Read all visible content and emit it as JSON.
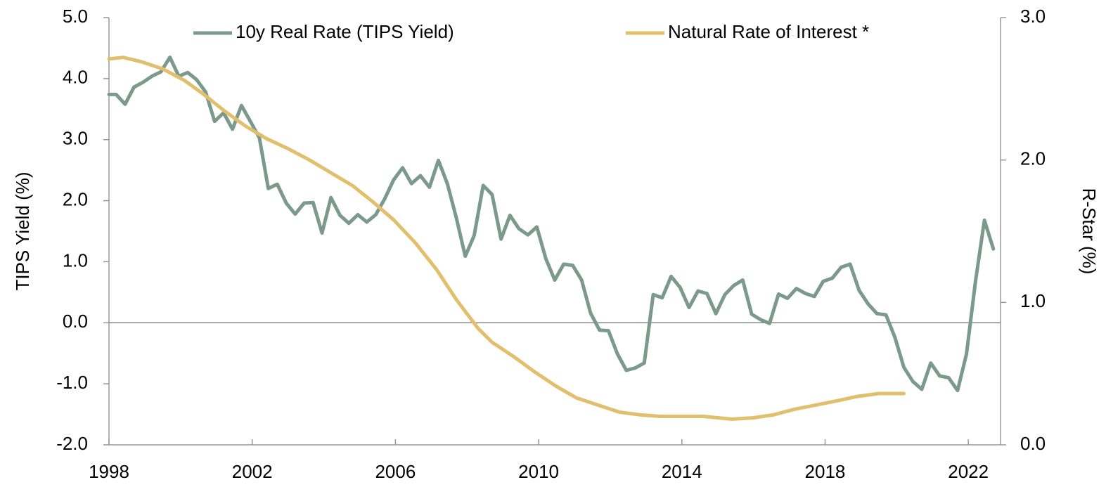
{
  "chart_data": {
    "type": "line",
    "ylabel": "TIPS Yield (%)",
    "y2label": "R-Star (%)",
    "xlim": [
      1998,
      2022.9
    ],
    "xticks": [
      1998,
      2002,
      2006,
      2010,
      2014,
      2018,
      2022
    ],
    "ylim": [
      -2,
      5
    ],
    "yticks": [
      {
        "value": -2,
        "label": "-2.0"
      },
      {
        "value": -1,
        "label": "-1.0"
      },
      {
        "value": 0,
        "label": "0.0"
      },
      {
        "value": 1,
        "label": "1.0"
      },
      {
        "value": 2,
        "label": "2.0"
      },
      {
        "value": 3,
        "label": "3.0"
      },
      {
        "value": 4,
        "label": "4.0"
      },
      {
        "value": 5,
        "label": "5.0"
      }
    ],
    "y2lim": [
      0,
      3
    ],
    "y2ticks": [
      {
        "value": 0,
        "label": "0.0"
      },
      {
        "value": 1,
        "label": "1.0"
      },
      {
        "value": 2,
        "label": "2.0"
      },
      {
        "value": 3,
        "label": "3.0"
      }
    ],
    "legend": "top",
    "series": [
      {
        "name": "10y Real Rate (TIPS Yield)",
        "color": "#7b9a8b",
        "x": [
          1998.0,
          1998.2,
          1998.45,
          1998.7,
          1998.95,
          1999.2,
          1999.45,
          1999.7,
          1999.95,
          2000.2,
          2000.45,
          2000.7,
          2000.95,
          2001.2,
          2001.45,
          2001.7,
          2001.95,
          2002.2,
          2002.45,
          2002.7,
          2002.95,
          2003.2,
          2003.45,
          2003.7,
          2003.95,
          2004.2,
          2004.45,
          2004.7,
          2004.95,
          2005.2,
          2005.45,
          2005.7,
          2005.95,
          2006.2,
          2006.45,
          2006.7,
          2006.95,
          2007.2,
          2007.45,
          2007.7,
          2007.95,
          2008.2,
          2008.45,
          2008.7,
          2008.95,
          2009.2,
          2009.45,
          2009.7,
          2009.95,
          2010.2,
          2010.45,
          2010.7,
          2010.95,
          2011.2,
          2011.45,
          2011.7,
          2011.95,
          2012.2,
          2012.45,
          2012.7,
          2012.95,
          2013.2,
          2013.45,
          2013.7,
          2013.95,
          2014.2,
          2014.45,
          2014.7,
          2014.95,
          2015.2,
          2015.45,
          2015.7,
          2015.95,
          2016.2,
          2016.45,
          2016.7,
          2016.95,
          2017.2,
          2017.45,
          2017.7,
          2017.95,
          2018.2,
          2018.45,
          2018.7,
          2018.95,
          2019.2,
          2019.45,
          2019.7,
          2019.95,
          2020.2,
          2020.45,
          2020.7,
          2020.95,
          2021.2,
          2021.45,
          2021.7,
          2021.95,
          2022.2,
          2022.45,
          2022.7
        ],
        "values": [
          3.74,
          3.74,
          3.58,
          3.86,
          3.94,
          4.04,
          4.11,
          4.35,
          4.04,
          4.1,
          3.98,
          3.78,
          3.3,
          3.44,
          3.17,
          3.56,
          3.3,
          3.03,
          2.2,
          2.27,
          1.96,
          1.78,
          1.96,
          1.97,
          1.47,
          2.05,
          1.76,
          1.63,
          1.77,
          1.65,
          1.77,
          2.03,
          2.34,
          2.54,
          2.28,
          2.41,
          2.22,
          2.66,
          2.28,
          1.72,
          1.09,
          1.43,
          2.25,
          2.1,
          1.37,
          1.76,
          1.54,
          1.44,
          1.57,
          1.05,
          0.7,
          0.96,
          0.94,
          0.7,
          0.16,
          -0.12,
          -0.13,
          -0.51,
          -0.78,
          -0.74,
          -0.66,
          0.46,
          0.41,
          0.76,
          0.58,
          0.25,
          0.52,
          0.48,
          0.15,
          0.46,
          0.61,
          0.7,
          0.14,
          0.05,
          -0.01,
          0.47,
          0.4,
          0.56,
          0.48,
          0.43,
          0.68,
          0.73,
          0.91,
          0.96,
          0.53,
          0.31,
          0.15,
          0.13,
          -0.24,
          -0.73,
          -0.96,
          -1.09,
          -0.66,
          -0.87,
          -0.9,
          -1.11,
          -0.51,
          0.68,
          1.68,
          1.21
        ]
      },
      {
        "name": "Natural Rate of Interest *",
        "color": "#e1bf6d",
        "axis": "y2",
        "x": [
          1998.0,
          1998.4,
          1998.9,
          1999.5,
          2000.1,
          2000.65,
          2001.25,
          2001.8,
          2002.4,
          2003.0,
          2003.6,
          2004.2,
          2004.8,
          2005.35,
          2005.95,
          2006.55,
          2007.15,
          2007.7,
          2008.3,
          2008.7,
          2009.3,
          2009.9,
          2010.5,
          2011.05,
          2011.65,
          2012.25,
          2012.85,
          2013.4,
          2014.0,
          2014.6,
          2015.4,
          2016.0,
          2016.55,
          2017.15,
          2017.75,
          2018.35,
          2018.9,
          2019.5,
          2019.9,
          2020.2
        ],
        "values": [
          2.71,
          2.72,
          2.69,
          2.64,
          2.56,
          2.46,
          2.34,
          2.24,
          2.15,
          2.08,
          2.0,
          1.91,
          1.82,
          1.71,
          1.58,
          1.42,
          1.23,
          1.02,
          0.82,
          0.72,
          0.62,
          0.51,
          0.41,
          0.33,
          0.28,
          0.23,
          0.21,
          0.2,
          0.2,
          0.2,
          0.18,
          0.19,
          0.21,
          0.25,
          0.28,
          0.31,
          0.34,
          0.36,
          0.36,
          0.36
        ]
      }
    ]
  }
}
